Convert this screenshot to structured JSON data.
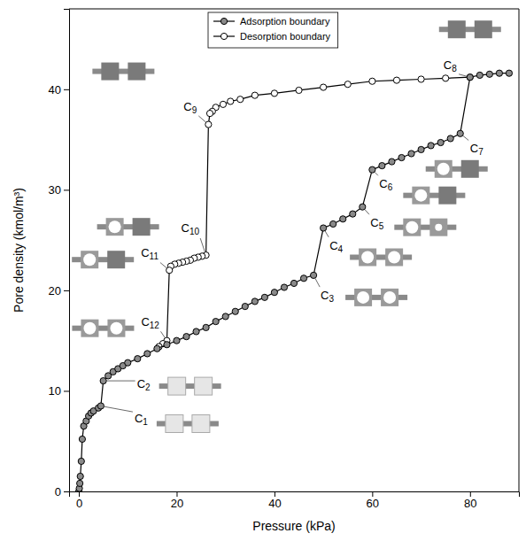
{
  "chart_data": {
    "type": "line",
    "x_label": "Pressure (kPa)",
    "y_label": "Pore density (kmol/m³)",
    "xlim": [
      -2,
      90
    ],
    "ylim": [
      0,
      48
    ],
    "xticks": [
      0,
      20,
      40,
      60,
      80
    ],
    "yticks": [
      0,
      10,
      20,
      30,
      40
    ],
    "legend": "top",
    "series": [
      {
        "name": "Adsorption boundary",
        "color": "#8a8a8a",
        "marker": "filled-circle",
        "line_style": "solid",
        "x": [
          0,
          0.1,
          0.2,
          0.3,
          0.5,
          0.7,
          1,
          1.5,
          2,
          2.5,
          3,
          4,
          4.5,
          5,
          6,
          7,
          8,
          9,
          10,
          12,
          14,
          16,
          18,
          20,
          22,
          24,
          26,
          28,
          30,
          32,
          34,
          36,
          38,
          40,
          42,
          44,
          46,
          48,
          50,
          52,
          54,
          56,
          58,
          60,
          62,
          64,
          66,
          68,
          70,
          72,
          74,
          76,
          78,
          80,
          82,
          84,
          86,
          88
        ],
        "values": [
          0,
          0.3,
          0.8,
          1.5,
          3,
          5.2,
          6.5,
          7,
          7.5,
          7.8,
          8,
          8.3,
          8.5,
          11,
          11.5,
          11.9,
          12.2,
          12.5,
          12.8,
          13.2,
          13.7,
          14.2,
          14.6,
          15,
          15.4,
          15.9,
          16.3,
          16.9,
          17.4,
          17.9,
          18.4,
          18.9,
          19.3,
          19.8,
          20.3,
          20.7,
          21.2,
          21.5,
          26.2,
          26.6,
          27.1,
          27.6,
          28.3,
          32,
          32.4,
          32.8,
          33.2,
          33.6,
          34,
          34.4,
          34.7,
          35.1,
          35.6,
          41.2,
          41.4,
          41.5,
          41.6,
          41.6
        ]
      },
      {
        "name": "Desorption boundary",
        "color": "#ffffff",
        "marker": "open-circle",
        "line_style": "solid",
        "x": [
          80,
          75,
          70,
          65,
          60,
          55,
          50,
          45,
          40,
          36,
          33,
          31,
          29.5,
          28,
          27.3,
          26.8,
          26.5,
          26,
          25.2,
          24.4,
          23.6,
          22.8,
          22,
          21.2,
          20.4,
          19.6,
          18.8,
          18.5,
          18,
          17.2,
          16.4
        ],
        "values": [
          41.2,
          41.1,
          41.0,
          40.9,
          40.8,
          40.5,
          40.2,
          39.9,
          39.6,
          39.4,
          39.0,
          38.8,
          38.5,
          38.2,
          37.8,
          37.6,
          36.5,
          23.5,
          23.4,
          23.3,
          23.2,
          23.0,
          22.9,
          22.8,
          22.7,
          22.6,
          22.4,
          22.0,
          15.0,
          14.7,
          14.4
        ]
      }
    ],
    "annotations": [
      {
        "text": "C1",
        "x": 4.5,
        "y": 8.5
      },
      {
        "text": "C2",
        "x": 5,
        "y": 11
      },
      {
        "text": "C3",
        "x": 48,
        "y": 21.5
      },
      {
        "text": "C4",
        "x": 50,
        "y": 26.2
      },
      {
        "text": "C5",
        "x": 58,
        "y": 28.3
      },
      {
        "text": "C6",
        "x": 60,
        "y": 32
      },
      {
        "text": "C7",
        "x": 78,
        "y": 35.6
      },
      {
        "text": "C8",
        "x": 80,
        "y": 41.2
      },
      {
        "text": "C9",
        "x": 26.5,
        "y": 36.5
      },
      {
        "text": "C10",
        "x": 26,
        "y": 23.5
      },
      {
        "text": "C11",
        "x": 18.5,
        "y": 22
      },
      {
        "text": "C12",
        "x": 18,
        "y": 15
      }
    ]
  }
}
